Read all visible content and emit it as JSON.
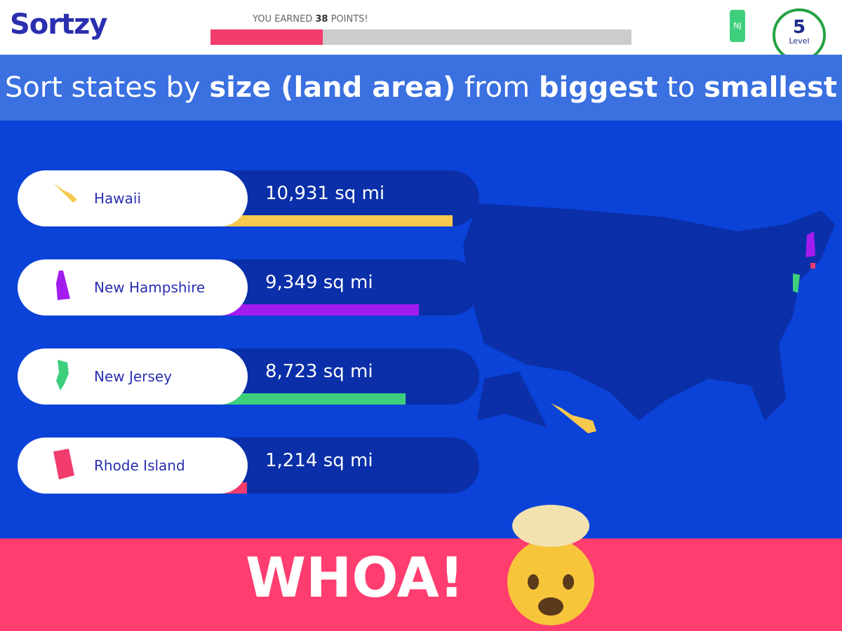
{
  "header": {
    "logo": "Sortzy",
    "progress_prefix": "YOU EARNED",
    "points": 38,
    "progress_suffix": "POINTS!",
    "state_badge": "NJ",
    "level": 5,
    "level_label": "Level"
  },
  "prompt": {
    "parts": [
      {
        "text": "Sort states by ",
        "bold": false
      },
      {
        "text": "size (land area)",
        "bold": true
      },
      {
        "text": " from ",
        "bold": false
      },
      {
        "text": "biggest",
        "bold": true
      },
      {
        "text": " to ",
        "bold": false
      },
      {
        "text": "smallest",
        "bold": true
      }
    ]
  },
  "items": [
    {
      "name": "Hawaii",
      "area": 10931,
      "area_label": "10,931 sq mi",
      "color": "#f7c94e"
    },
    {
      "name": "New Hampshire",
      "area": 9349,
      "area_label": "9,349 sq mi",
      "color": "#a21cf0"
    },
    {
      "name": "New Jersey",
      "area": 8723,
      "area_label": "8,723 sq mi",
      "color": "#3ecf7c"
    },
    {
      "name": "Rhode Island",
      "area": 1214,
      "area_label": "1,214 sq mi",
      "color": "#f23c6e"
    }
  ],
  "banner": "WHOA!"
}
